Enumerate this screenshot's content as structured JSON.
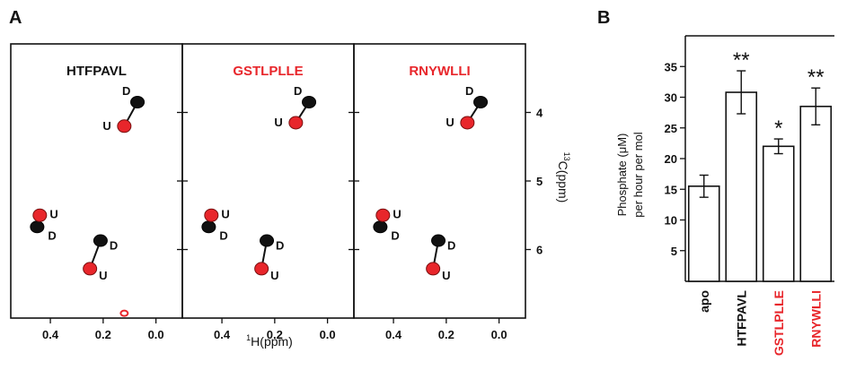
{
  "panel_a": {
    "label": "A",
    "xlabel_sup": "1",
    "xlabel_main": "H(ppm)",
    "ylabel_sup": "13",
    "ylabel_main": "C(ppm)",
    "x_ticks": [
      "0.4",
      "0.2",
      "0.0"
    ],
    "y_ticks": [
      "4",
      "5",
      "6"
    ],
    "panels": [
      {
        "title": "HTFPAVL",
        "title_color": "#111111"
      },
      {
        "title": "GSTLPLLE",
        "title_color": "#e8262b"
      },
      {
        "title": "RNYWLLI",
        "title_color": "#e8262b"
      }
    ],
    "colors": {
      "D": "#111111",
      "U": "#e8262b"
    }
  },
  "panel_b": {
    "label": "B",
    "ylabel_line1_pre": "Phosphate (",
    "ylabel_line1_mu": "μ",
    "ylabel_line1_post": "M)",
    "ylabel_line2": "per hour per mol"
  },
  "chart_data": [
    {
      "type": "scatter",
      "title": "HTFPAVL",
      "xlabel": "1H(ppm)",
      "ylabel": "13C(ppm)",
      "xlim": [
        0.55,
        -0.1
      ],
      "ylim": [
        3.0,
        7.0
      ],
      "pairs": [
        {
          "D": {
            "x": 0.07,
            "y": 3.85,
            "label": "D"
          },
          "U": {
            "x": 0.12,
            "y": 4.2,
            "label": "U"
          }
        },
        {
          "D": {
            "x": 0.45,
            "y": 5.67,
            "label": "D"
          },
          "U": {
            "x": 0.44,
            "y": 5.5,
            "label": "U"
          }
        },
        {
          "D": {
            "x": 0.21,
            "y": 5.87,
            "label": "D"
          },
          "U": {
            "x": 0.25,
            "y": 6.28,
            "label": "U"
          }
        }
      ],
      "extra_points": [
        {
          "x": 0.12,
          "y": 6.93,
          "color": "red"
        }
      ]
    },
    {
      "type": "scatter",
      "title": "GSTLPLLE",
      "xlabel": "1H(ppm)",
      "ylabel": "13C(ppm)",
      "xlim": [
        0.55,
        -0.1
      ],
      "ylim": [
        3.0,
        7.0
      ],
      "pairs": [
        {
          "D": {
            "x": 0.07,
            "y": 3.85,
            "label": "D"
          },
          "U": {
            "x": 0.12,
            "y": 4.15,
            "label": "U"
          }
        },
        {
          "D": {
            "x": 0.45,
            "y": 5.67,
            "label": "D"
          },
          "U": {
            "x": 0.44,
            "y": 5.5,
            "label": "U"
          }
        },
        {
          "D": {
            "x": 0.23,
            "y": 5.87,
            "label": "D"
          },
          "U": {
            "x": 0.25,
            "y": 6.28,
            "label": "U"
          }
        }
      ]
    },
    {
      "type": "scatter",
      "title": "RNYWLLI",
      "xlabel": "1H(ppm)",
      "ylabel": "13C(ppm)",
      "xlim": [
        0.55,
        -0.1
      ],
      "ylim": [
        3.0,
        7.0
      ],
      "pairs": [
        {
          "D": {
            "x": 0.07,
            "y": 3.85,
            "label": "D"
          },
          "U": {
            "x": 0.12,
            "y": 4.15,
            "label": "U"
          }
        },
        {
          "D": {
            "x": 0.45,
            "y": 5.67,
            "label": "D"
          },
          "U": {
            "x": 0.44,
            "y": 5.5,
            "label": "U"
          }
        },
        {
          "D": {
            "x": 0.23,
            "y": 5.87,
            "label": "D"
          },
          "U": {
            "x": 0.25,
            "y": 6.28,
            "label": "U"
          }
        }
      ]
    },
    {
      "type": "bar",
      "categories": [
        "apo",
        "HTFPAVL",
        "GSTLPLLE",
        "RNYWLLI"
      ],
      "category_colors": [
        "#111111",
        "#111111",
        "#e8262b",
        "#e8262b"
      ],
      "values": [
        15.5,
        30.8,
        22.0,
        28.5
      ],
      "errors": [
        1.8,
        3.5,
        1.2,
        3.0
      ],
      "significance": [
        "",
        "**",
        "*",
        "**"
      ],
      "ylabel": "Phosphate (μM) per hour per mol",
      "yticks": [
        5,
        10,
        15,
        20,
        25,
        30,
        35
      ],
      "ylim": [
        0,
        40
      ]
    }
  ]
}
